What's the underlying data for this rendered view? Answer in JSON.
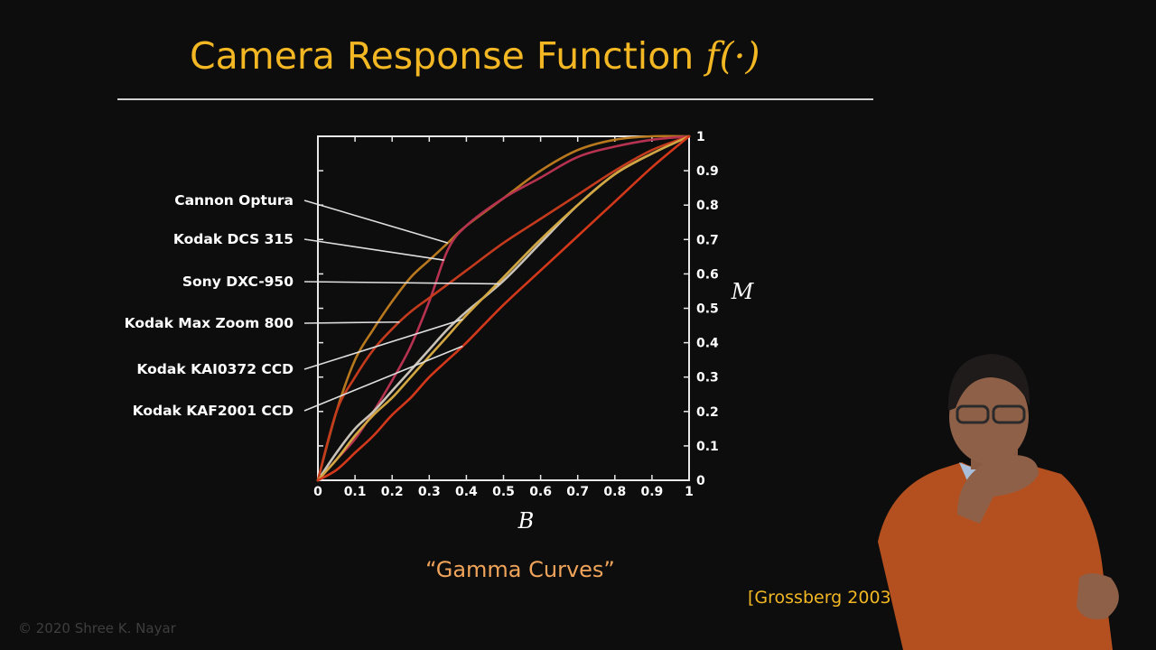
{
  "slide": {
    "title": "Camera Response Function",
    "title_function": "f(·)",
    "caption": "“Gamma Curves”",
    "citation": "[Grossberg 2003]",
    "copyright": "© 2020 Shree K. Nayar"
  },
  "chart_data": {
    "type": "line",
    "title": "Camera Response Function f(·)",
    "xlabel": "B",
    "ylabel": "M",
    "xlim": [
      0,
      1
    ],
    "ylim": [
      0,
      1
    ],
    "xticks": [
      "0",
      "0.1",
      "0.2",
      "0.3",
      "0.4",
      "0.5",
      "0.6",
      "0.7",
      "0.8",
      "0.9",
      "1"
    ],
    "yticks": [
      "0",
      "0.1",
      "0.2",
      "0.3",
      "0.4",
      "0.5",
      "0.6",
      "0.7",
      "0.8",
      "0.9",
      "1"
    ],
    "y_axis_side": "right",
    "series_colors": [
      "#b8781e",
      "#b63250",
      "#c9c2b8",
      "#c43a1c",
      "#d2a640",
      "#d4381a"
    ],
    "series": [
      {
        "x": [
          0,
          0.05,
          0.1,
          0.15,
          0.2,
          0.25,
          0.3,
          0.35,
          0.4,
          0.5,
          0.6,
          0.7,
          0.8,
          0.9,
          1
        ],
        "y": [
          0,
          0.2,
          0.35,
          0.44,
          0.52,
          0.59,
          0.64,
          0.69,
          0.74,
          0.82,
          0.9,
          0.96,
          0.99,
          1,
          1
        ]
      },
      {
        "x": [
          0,
          0.05,
          0.1,
          0.15,
          0.2,
          0.25,
          0.3,
          0.35,
          0.4,
          0.5,
          0.6,
          0.7,
          0.8,
          0.9,
          1
        ],
        "y": [
          0,
          0.06,
          0.12,
          0.2,
          0.29,
          0.39,
          0.52,
          0.67,
          0.74,
          0.82,
          0.88,
          0.94,
          0.97,
          0.99,
          1
        ]
      },
      {
        "x": [
          0,
          0.05,
          0.1,
          0.15,
          0.2,
          0.25,
          0.3,
          0.35,
          0.4,
          0.5,
          0.6,
          0.7,
          0.8,
          0.9,
          1
        ],
        "y": [
          0,
          0.08,
          0.15,
          0.2,
          0.26,
          0.32,
          0.38,
          0.44,
          0.49,
          0.58,
          0.69,
          0.8,
          0.89,
          0.95,
          1
        ]
      },
      {
        "x": [
          0,
          0.05,
          0.1,
          0.15,
          0.2,
          0.25,
          0.3,
          0.35,
          0.4,
          0.5,
          0.6,
          0.7,
          0.8,
          0.9,
          1
        ],
        "y": [
          0,
          0.2,
          0.3,
          0.38,
          0.44,
          0.49,
          0.53,
          0.57,
          0.61,
          0.69,
          0.76,
          0.83,
          0.9,
          0.96,
          1
        ]
      },
      {
        "x": [
          0,
          0.05,
          0.1,
          0.15,
          0.2,
          0.25,
          0.3,
          0.35,
          0.4,
          0.5,
          0.6,
          0.7,
          0.8,
          0.9,
          1
        ],
        "y": [
          0,
          0.06,
          0.13,
          0.19,
          0.24,
          0.3,
          0.36,
          0.42,
          0.48,
          0.59,
          0.7,
          0.8,
          0.89,
          0.95,
          1
        ]
      },
      {
        "x": [
          0,
          0.05,
          0.1,
          0.15,
          0.2,
          0.25,
          0.3,
          0.35,
          0.4,
          0.5,
          0.6,
          0.7,
          0.8,
          0.9,
          1
        ],
        "y": [
          0,
          0.03,
          0.08,
          0.13,
          0.19,
          0.24,
          0.3,
          0.35,
          0.4,
          0.51,
          0.61,
          0.71,
          0.81,
          0.91,
          1
        ]
      }
    ],
    "annotations": [
      {
        "text": "Cannon Optura",
        "series_index": 0,
        "x": 0.35
      },
      {
        "text": "Kodak DCS 315",
        "series_index": 1,
        "x": 0.34
      },
      {
        "text": "Sony DXC-950",
        "series_index": 2,
        "x": 0.49
      },
      {
        "text": "Kodak Max Zoom 800",
        "series_index": 3,
        "x": 0.22
      },
      {
        "text": "Kodak KAI0372 CCD",
        "series_index": 4,
        "x": 0.39
      },
      {
        "text": "Kodak KAF2001 CCD",
        "series_index": 5,
        "x": 0.39
      }
    ]
  }
}
